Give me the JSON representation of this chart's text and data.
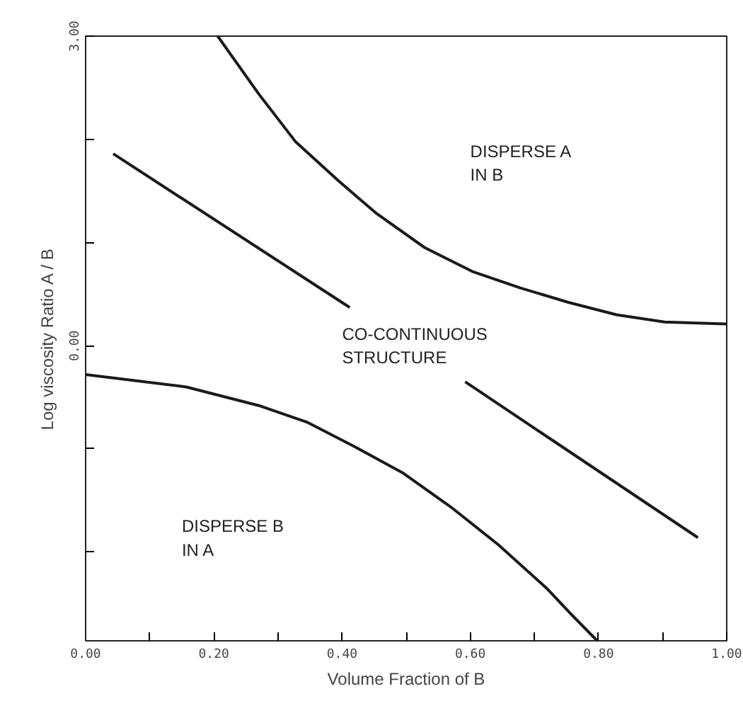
{
  "chart_data": {
    "type": "line",
    "xlabel": "Volume Fraction of B",
    "ylabel": "Log viscosity Ratio A / B",
    "xlim": [
      0,
      1
    ],
    "ylim": [
      -2.86,
      3
    ],
    "xticks": [
      {
        "value": 0,
        "label": "0.00"
      },
      {
        "value": 0.1,
        "label": null
      },
      {
        "value": 0.2,
        "label": "0.20"
      },
      {
        "value": 0.3,
        "label": null
      },
      {
        "value": 0.4,
        "label": "0.40"
      },
      {
        "value": 0.5,
        "label": null
      },
      {
        "value": 0.6,
        "label": "0.60"
      },
      {
        "value": 0.7,
        "label": null
      },
      {
        "value": 0.8,
        "label": "0.80"
      },
      {
        "value": 0.9,
        "label": null
      },
      {
        "value": 1,
        "label": "1.00"
      }
    ],
    "yticks": [
      {
        "value": -2,
        "label": null
      },
      {
        "value": -1,
        "label": null
      },
      {
        "value": 0,
        "label": "0.00"
      },
      {
        "value": 1,
        "label": null
      },
      {
        "value": 2,
        "label": null
      },
      {
        "value": 3,
        "label": "3.00"
      }
    ],
    "grid": false,
    "marker": "none",
    "line_style": "solid",
    "series": [
      {
        "color": "#1a1a1a",
        "x": [
          0.206,
          0.27,
          0.327,
          0.394,
          0.454,
          0.529,
          0.603,
          0.678,
          0.753,
          0.828,
          0.903,
          1.0
        ],
        "values": [
          3.0,
          2.44,
          1.98,
          1.6,
          1.28,
          0.95,
          0.72,
          0.56,
          0.42,
          0.3,
          0.23,
          0.21
        ]
      },
      {
        "color": "#1a1a1a",
        "x": [
          0.043,
          0.412
        ],
        "values": [
          1.86,
          0.37
        ]
      },
      {
        "color": "#1a1a1a",
        "x": [
          0.592,
          0.955
        ],
        "values": [
          -0.35,
          -1.86
        ]
      },
      {
        "color": "#1a1a1a",
        "x": [
          0.0,
          0.157,
          0.27,
          0.345,
          0.42,
          0.494,
          0.569,
          0.644,
          0.719,
          0.757,
          0.798
        ],
        "values": [
          -0.28,
          -0.4,
          -0.58,
          -0.74,
          -0.98,
          -1.23,
          -1.56,
          -1.93,
          -2.35,
          -2.6,
          -2.86
        ]
      }
    ],
    "annotations": [
      "DISPERSE A\nIN B",
      "CO-CONTINUOUS\nSTRUCTURE",
      "DISPERSE B\nIN A"
    ]
  }
}
